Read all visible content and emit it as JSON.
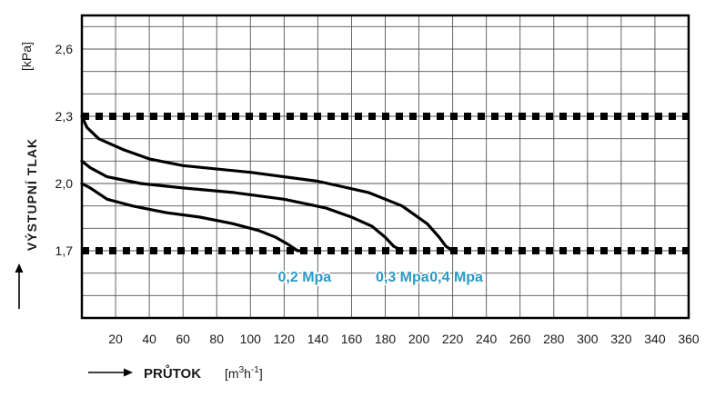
{
  "chart_data": {
    "type": "line",
    "title": "",
    "ylabel": "VÝSTUPNÍ TLAK",
    "yunit": "[kPa]",
    "xlabel": "PRŮTOK",
    "xunit_prefix": "[m",
    "xunit_sup1": "3",
    "xunit_mid": "h",
    "xunit_sup2": "-1",
    "xunit_suffix": "]",
    "xlim": [
      0,
      360
    ],
    "ylim": [
      1.4,
      2.75
    ],
    "xticks": [
      20,
      40,
      60,
      80,
      100,
      120,
      140,
      160,
      180,
      200,
      220,
      240,
      260,
      280,
      300,
      320,
      340,
      360
    ],
    "yticks": [
      {
        "value": 2.6,
        "label": "2,6"
      },
      {
        "value": 2.3,
        "label": "2,3"
      },
      {
        "value": 2.0,
        "label": "2,0"
      },
      {
        "value": 1.7,
        "label": "1,7"
      }
    ],
    "grid": true,
    "reference_lines": [
      2.3,
      1.7
    ],
    "series": [
      {
        "name": "0,2 Mpa",
        "x": [
          0,
          5,
          15,
          30,
          50,
          70,
          90,
          105,
          115,
          122,
          128,
          132
        ],
        "y": [
          2.0,
          1.98,
          1.93,
          1.9,
          1.87,
          1.85,
          1.82,
          1.79,
          1.76,
          1.73,
          1.7,
          1.7
        ]
      },
      {
        "name": "0,3 Mpa",
        "x": [
          0,
          5,
          15,
          35,
          60,
          90,
          120,
          145,
          160,
          172,
          180,
          185,
          190
        ],
        "y": [
          2.1,
          2.07,
          2.03,
          2.0,
          1.98,
          1.96,
          1.93,
          1.89,
          1.85,
          1.81,
          1.76,
          1.72,
          1.7
        ]
      },
      {
        "name": "0,4 Mpa",
        "x": [
          0,
          3,
          10,
          25,
          40,
          60,
          100,
          140,
          170,
          190,
          205,
          212,
          216,
          220
        ],
        "y": [
          2.3,
          2.25,
          2.2,
          2.15,
          2.11,
          2.08,
          2.05,
          2.01,
          1.96,
          1.9,
          1.82,
          1.76,
          1.72,
          1.7
        ]
      }
    ],
    "annotation_color": "#2a9ac4",
    "line_color": "#000000",
    "grid_color": "#555555"
  }
}
